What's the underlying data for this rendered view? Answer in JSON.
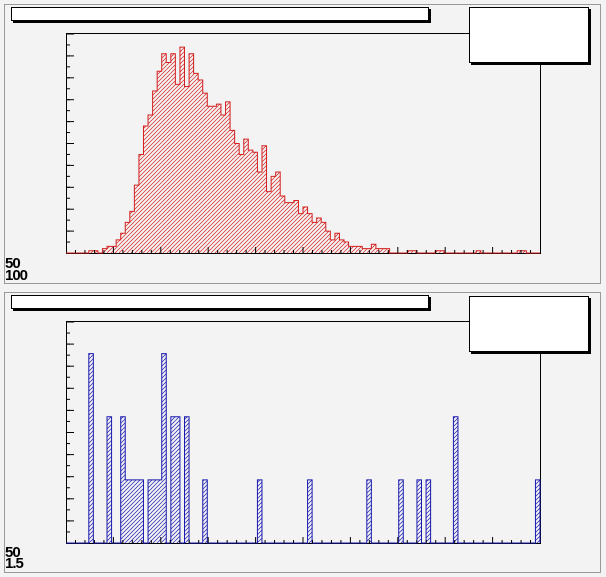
{
  "panels": [
    {
      "name": "top",
      "title": "",
      "stats": "",
      "color": "#d42020",
      "fill_pattern": "hatch",
      "yaxis_labels": [
        "50",
        "100"
      ]
    },
    {
      "name": "bottom",
      "title": "",
      "stats": "",
      "color": "#1a1ab0",
      "fill_pattern": "hatch",
      "yaxis_labels": [
        "50",
        "1.5"
      ]
    }
  ],
  "chart_data": [
    {
      "type": "bar",
      "style": "step-histogram",
      "title": "",
      "xlabel": "",
      "ylabel": "",
      "grid": false,
      "legend": "none",
      "ylim": [
        0,
        100
      ],
      "bins": 104,
      "values": [
        0,
        0,
        0,
        0,
        0,
        1,
        1,
        0,
        2,
        3,
        3,
        6,
        9,
        14,
        19,
        31,
        45,
        58,
        63,
        74,
        83,
        91,
        87,
        91,
        77,
        94,
        76,
        91,
        82,
        79,
        73,
        67,
        67,
        68,
        63,
        69,
        56,
        50,
        45,
        52,
        47,
        46,
        37,
        49,
        28,
        35,
        37,
        26,
        23,
        23,
        24,
        18,
        21,
        18,
        14,
        16,
        14,
        10,
        6,
        9,
        6,
        5,
        3,
        3,
        3,
        2,
        2,
        4,
        2,
        2,
        2,
        0,
        0,
        0,
        0,
        1,
        1,
        0,
        0,
        0,
        0,
        1,
        1,
        0,
        0,
        0,
        0,
        0,
        0,
        0,
        1,
        0,
        0,
        0,
        0,
        0,
        0,
        0,
        0,
        1,
        1,
        0,
        0,
        0
      ]
    },
    {
      "type": "bar",
      "style": "step-histogram",
      "title": "",
      "xlabel": "",
      "ylabel": "",
      "grid": false,
      "legend": "none",
      "ylim": [
        0,
        7
      ],
      "bins": 104,
      "values": [
        0,
        0,
        0,
        0,
        0,
        6,
        0,
        0,
        0,
        4,
        0,
        0,
        4,
        2,
        2,
        2,
        2,
        0,
        2,
        2,
        2,
        6,
        0,
        4,
        4,
        0,
        4,
        0,
        0,
        0,
        2,
        0,
        0,
        0,
        0,
        0,
        0,
        0,
        0,
        0,
        0,
        0,
        2,
        0,
        0,
        0,
        0,
        0,
        0,
        0,
        0,
        0,
        0,
        2,
        0,
        0,
        0,
        0,
        0,
        0,
        0,
        0,
        0,
        0,
        0,
        0,
        2,
        0,
        0,
        0,
        0,
        0,
        0,
        2,
        0,
        0,
        0,
        2,
        0,
        2,
        0,
        0,
        0,
        0,
        0,
        4,
        0,
        0,
        0,
        0,
        0,
        0,
        0,
        0,
        0,
        0,
        0,
        0,
        0,
        0,
        0,
        0,
        0,
        2
      ]
    }
  ]
}
